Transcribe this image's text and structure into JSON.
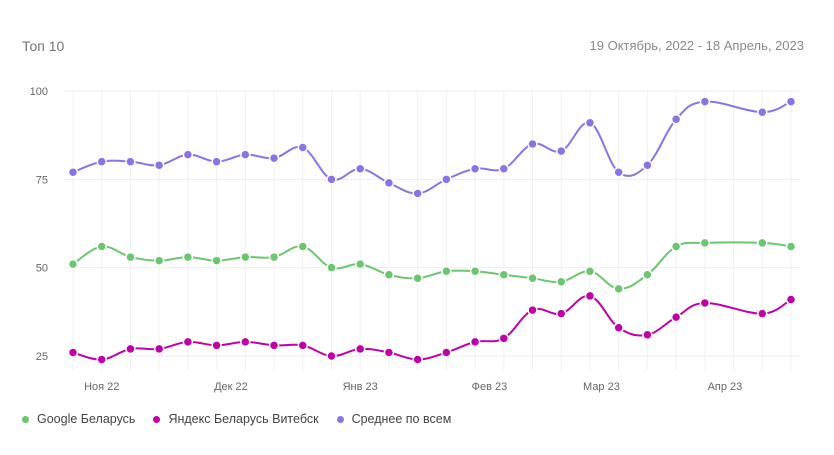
{
  "header": {
    "title": "Топ 10",
    "date_range": "19 Октябрь, 2022 - 18 Апрель, 2023"
  },
  "chart_data": {
    "type": "line",
    "title": "Топ 10",
    "ylim": [
      21,
      100
    ],
    "yticks": [
      25,
      50,
      75,
      100
    ],
    "ytick_labels": [
      "25",
      "50",
      "75",
      "100"
    ],
    "x_count": 26,
    "xticks": [
      {
        "pos": 1,
        "label": "Ноя 22"
      },
      {
        "pos": 5.5,
        "label": "Дек 22"
      },
      {
        "pos": 10,
        "label": "Янв 23"
      },
      {
        "pos": 14.5,
        "label": "Фев 23"
      },
      {
        "pos": 18.4,
        "label": "Мар 23"
      },
      {
        "pos": 22.7,
        "label": "Апр 23"
      }
    ],
    "grid": true,
    "legend_position": "bottom-left",
    "series": [
      {
        "name": "Google Беларусь",
        "color": "#6cc56f",
        "values": [
          51,
          56,
          53,
          52,
          53,
          52,
          53,
          53,
          56,
          50,
          51,
          48,
          47,
          49,
          49,
          48,
          47,
          46,
          49,
          44,
          48,
          56,
          57,
          null,
          57,
          56
        ]
      },
      {
        "name": "Яндекс Беларусь Витебск",
        "color": "#c000a8",
        "values": [
          26,
          24,
          27,
          27,
          29,
          28,
          29,
          28,
          28,
          25,
          27,
          26,
          24,
          26,
          29,
          30,
          38,
          37,
          42,
          33,
          31,
          36,
          40,
          null,
          37,
          41
        ]
      },
      {
        "name": "Среднее по всем",
        "color": "#8b72e8",
        "values": [
          77,
          80,
          80,
          79,
          82,
          80,
          82,
          81,
          84,
          75,
          78,
          74,
          71,
          75,
          78,
          78,
          85,
          83,
          91,
          77,
          79,
          92,
          97,
          null,
          94,
          97
        ]
      }
    ]
  }
}
